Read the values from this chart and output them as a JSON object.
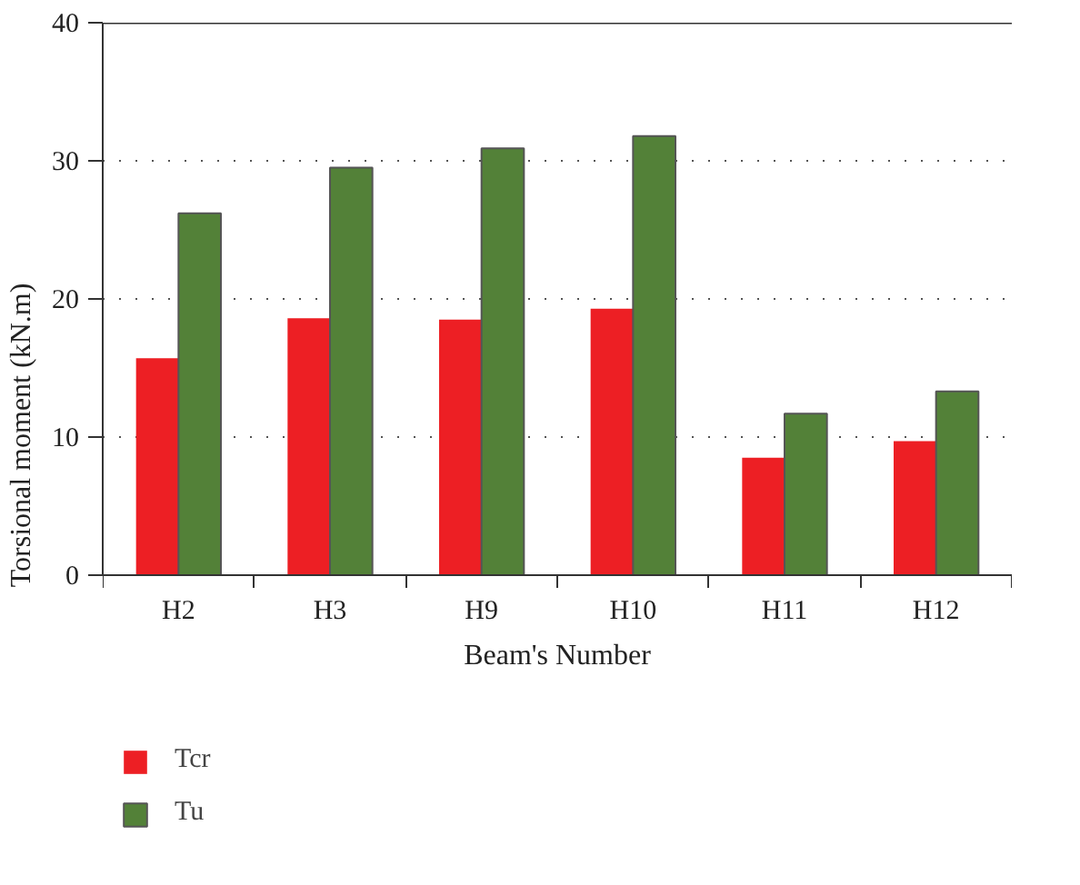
{
  "chart_data": {
    "type": "bar",
    "xlabel": "Beam's Number",
    "ylabel": "Torsional moment (kN.m)",
    "categories": [
      "H2",
      "H3",
      "H9",
      "H10",
      "H11",
      "H12"
    ],
    "series": [
      {
        "name": "Tcr",
        "color": "#ed1f24",
        "values": [
          15.7,
          18.6,
          18.5,
          19.3,
          8.5,
          9.7
        ]
      },
      {
        "name": "Tu",
        "color": "#538138",
        "values": [
          26.2,
          29.5,
          30.9,
          31.8,
          11.7,
          13.3
        ]
      }
    ],
    "ylim": [
      0,
      40
    ],
    "yticks": [
      0,
      10,
      20,
      30,
      40
    ],
    "grid": "y",
    "legend": "bottom left"
  }
}
